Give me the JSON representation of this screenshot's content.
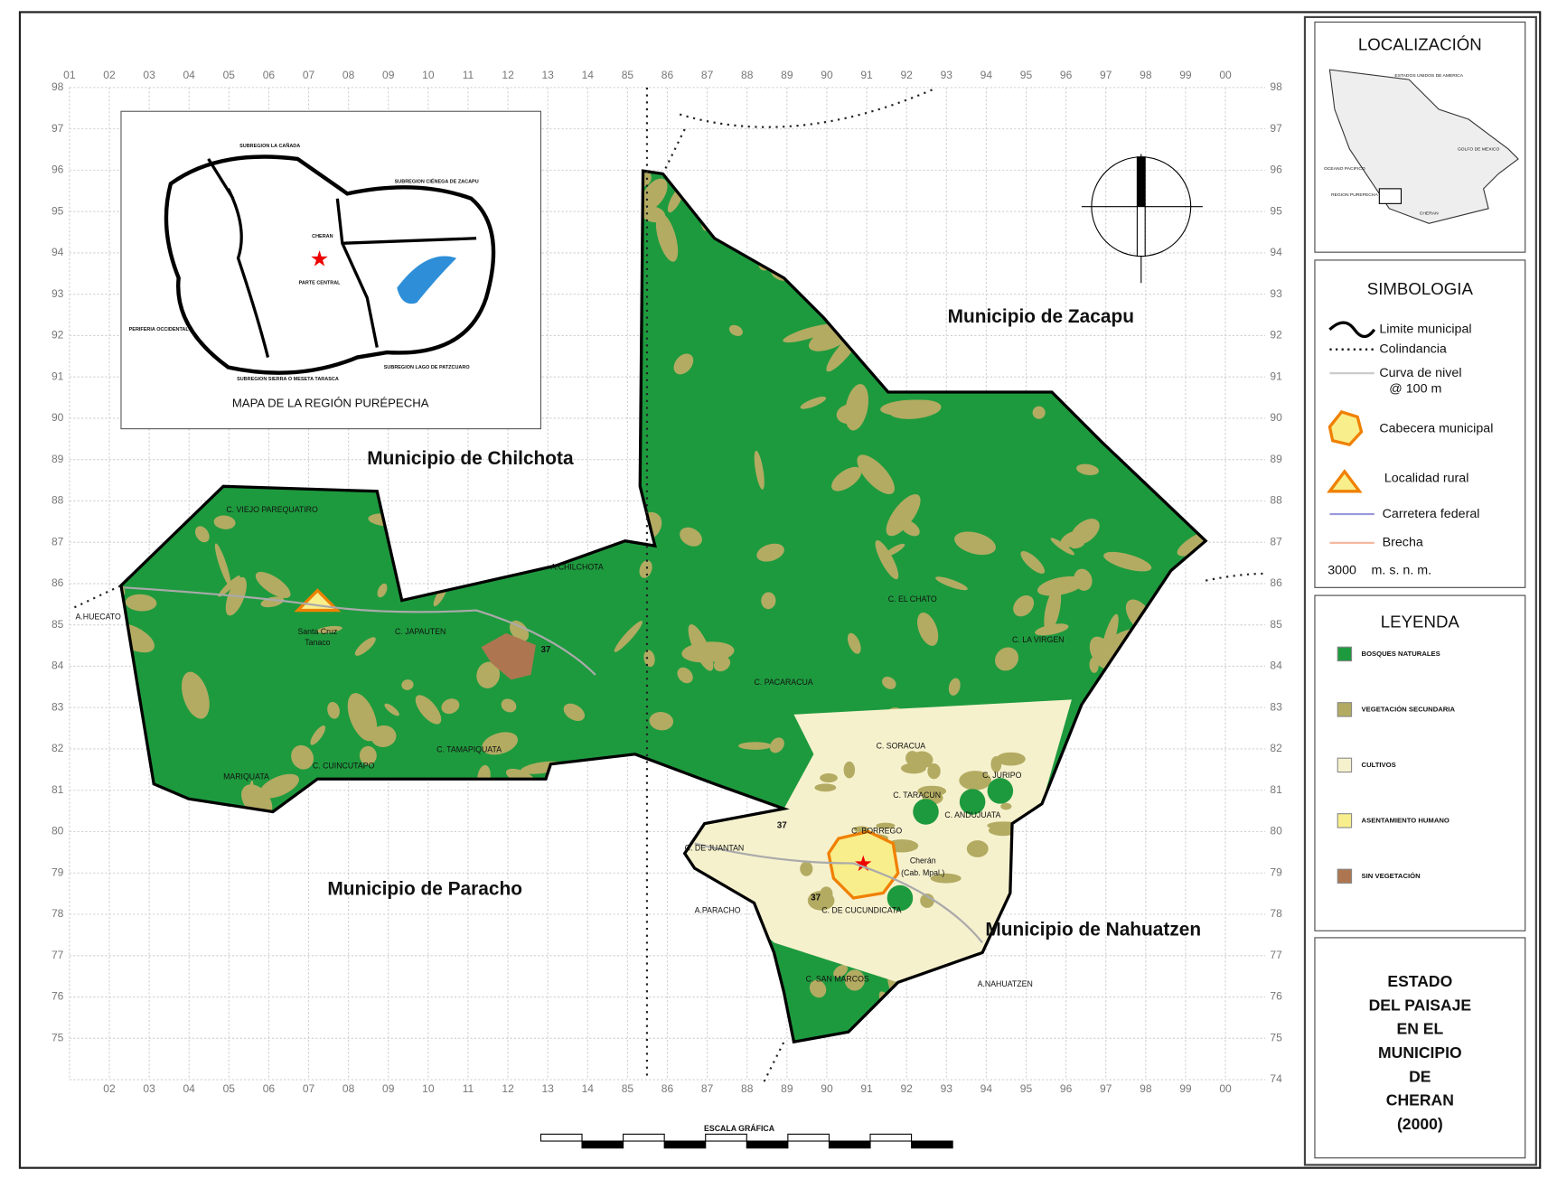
{
  "grid": {
    "top": [
      "01",
      "02",
      "03",
      "04",
      "05",
      "06",
      "07",
      "08",
      "09",
      "10",
      "11",
      "12",
      "13",
      "14",
      "85",
      "86",
      "87",
      "88",
      "89",
      "90",
      "91",
      "92",
      "93",
      "94",
      "95",
      "96",
      "97",
      "98",
      "99",
      "00"
    ],
    "bottom": [
      "02",
      "03",
      "04",
      "05",
      "06",
      "07",
      "08",
      "09",
      "10",
      "11",
      "12",
      "13",
      "14",
      "85",
      "86",
      "87",
      "88",
      "89",
      "90",
      "91",
      "92",
      "93",
      "94",
      "95",
      "96",
      "97",
      "98",
      "99",
      "00"
    ],
    "left": [
      "98",
      "97",
      "96",
      "95",
      "94",
      "93",
      "92",
      "91",
      "90",
      "89",
      "88",
      "87",
      "86",
      "85",
      "84",
      "83",
      "82",
      "81",
      "80",
      "79",
      "78",
      "77",
      "76",
      "75"
    ],
    "right": [
      "98",
      "97",
      "96",
      "95",
      "94",
      "93",
      "92",
      "91",
      "90",
      "89",
      "88",
      "87",
      "86",
      "85",
      "84",
      "83",
      "82",
      "81",
      "80",
      "79",
      "78",
      "77",
      "76",
      "75",
      "74"
    ]
  },
  "map": {
    "municipalities": [
      "Municipio de Zacapu",
      "Municipio de Chilchota",
      "Municipio de Paracho",
      "Municipio de Nahuatzen"
    ],
    "places": [
      "Santa Cruz",
      "Tanaco",
      "C. JAPAUTEN",
      "C. EL CHATO",
      "C. LA VIRGEN",
      "C. PACARACUA",
      "C. SORACUA",
      "C. JURIPO",
      "C. TARACUN",
      "C. ANDUJUATA",
      "C. BORREGO",
      "C. DE JUANTAN",
      "Cherán",
      "(Cab. Mpal.)",
      "C. DE CUCUNDICATA",
      "C. SAN MARCOS",
      "C. VIEJO PAREQUATIRO",
      "C. CUINCUTAPO",
      "C. TAMAPIQUATA",
      "MARIQUATA",
      "A.CHILCHOTA",
      "A.HUECATO",
      "A.PARACHO",
      "A.NAHUATZEN"
    ],
    "roads": [
      "37",
      "37",
      "37"
    ]
  },
  "inset": {
    "title": "MAPA DE LA REGIÓN PURÉPECHA",
    "labels": [
      "SUBREGION LA CAÑADA",
      "SUBREGION CIÉNEGA DE ZACAPU",
      "PERIFERIA OCCIDENTAL",
      "SUBREGION SIERRA O MESETA TARASCA",
      "SUBREGION LAGO DE PATZCUARO",
      "CHERAN",
      "PARTE CENTRAL"
    ]
  },
  "localization": {
    "title": "LOCALIZACIÓN",
    "labels": [
      "ESTADOS UNIDOS DE AMERICA",
      "GOLFO DE MEXICO",
      "OCEANO PACIFICO",
      "REGION PUREPECHA",
      "CHERAN"
    ]
  },
  "symbology": {
    "title": "SIMBOLOGIA",
    "items": [
      "Limite municipal",
      "Colindancia",
      "Curva de nivel",
      "@ 100 m",
      "Cabecera municipal",
      "Localidad rural",
      "Carretera federal",
      "Brecha"
    ],
    "elevation": "3000",
    "unit": "m. s. n. m."
  },
  "legend": {
    "title": "LEYENDA",
    "items": [
      {
        "label": "BOSQUES NATURALES",
        "color": "#1e9a3e"
      },
      {
        "label": "VEGETACIÓN SECUNDARIA",
        "color": "#b3ab62"
      },
      {
        "label": "CULTIVOS",
        "color": "#f6f1cd"
      },
      {
        "label": "ASENTAMIENTO HUMANO",
        "color": "#f8ee8c"
      },
      {
        "label": "SIN VEGETACIÓN",
        "color": "#ad7650"
      }
    ]
  },
  "title_block": [
    "ESTADO",
    "DEL PAISAJE",
    "EN EL",
    "MUNICIPIO",
    "DE",
    "CHERAN",
    "(2000)"
  ],
  "scale": {
    "title": "ESCALA GRÁFICA"
  }
}
